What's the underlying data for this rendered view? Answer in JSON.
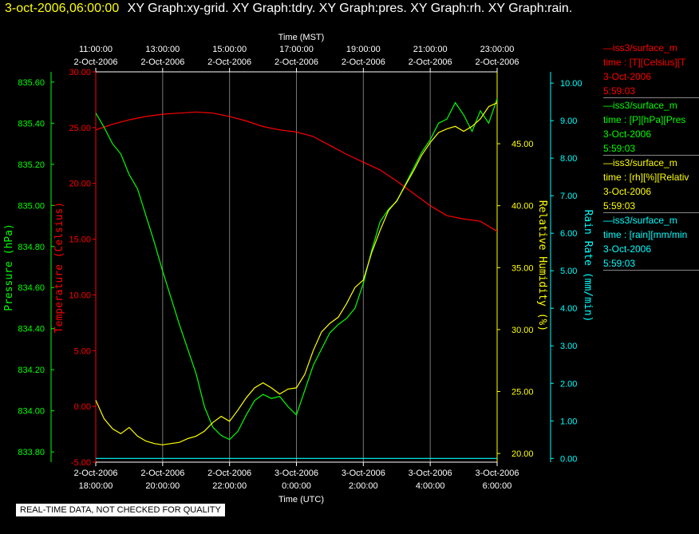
{
  "header": {
    "timestamp": "3-oct-2006,06:00:00",
    "titles": "XY Graph:xy-grid.  XY Graph:tdry.  XY Graph:pres.  XY Graph:rh.  XY Graph:rain."
  },
  "note": "REAL-TIME DATA, NOT CHECKED FOR QUALITY",
  "legend": [
    {
      "name": "—iss3/surface_m",
      "line2": "time : [T][Celsius][T",
      "line3": "3-Oct-2006",
      "line4": "5:59:03",
      "color": "#ff0000"
    },
    {
      "name": "—iss3/surface_m",
      "line2": "time : [P][hPa][Pres",
      "line3": "3-Oct-2006",
      "line4": "5:59:03",
      "color": "#00ff00"
    },
    {
      "name": "—iss3/surface_m",
      "line2": "time : [rh][%][Relativ",
      "line3": "3-Oct-2006",
      "line4": "5:59:03",
      "color": "#ffff00"
    },
    {
      "name": "—iss3/surface_m",
      "line2": "time : [rain][mm/min",
      "line3": "3-Oct-2006",
      "line4": "5:59:03",
      "color": "#00ffff"
    }
  ],
  "chart_data": {
    "type": "line",
    "top_axis": {
      "label": "Time (MST)",
      "ticks": [
        [
          "11:00:00",
          "2-Oct-2006"
        ],
        [
          "13:00:00",
          "2-Oct-2006"
        ],
        [
          "15:00:00",
          "2-Oct-2006"
        ],
        [
          "17:00:00",
          "2-Oct-2006"
        ],
        [
          "19:00:00",
          "2-Oct-2006"
        ],
        [
          "21:00:00",
          "2-Oct-2006"
        ],
        [
          "23:00:00",
          "2-Oct-2006"
        ]
      ]
    },
    "bottom_axis": {
      "label": "Time (UTC)",
      "ticks": [
        [
          "2-Oct-2006",
          "18:00:00"
        ],
        [
          "2-Oct-2006",
          "20:00:00"
        ],
        [
          "2-Oct-2006",
          "22:00:00"
        ],
        [
          "3-Oct-2006",
          "0:00:00"
        ],
        [
          "3-Oct-2006",
          "2:00:00"
        ],
        [
          "3-Oct-2006",
          "4:00:00"
        ],
        [
          "3-Oct-2006",
          "6:00:00"
        ]
      ]
    },
    "x_range_hours_utc": [
      18,
      30
    ],
    "axes": {
      "pressure": {
        "label": "Pressure (hPa)",
        "color": "#00ff00",
        "range": [
          833.75,
          835.65
        ],
        "ticks": [
          "835.60",
          "835.40",
          "835.20",
          "835.00",
          "834.80",
          "834.60",
          "834.40",
          "834.20",
          "834.00",
          "833.80"
        ]
      },
      "temperature": {
        "label": "Temperature (Celsius)",
        "color": "#ff0000",
        "range": [
          -5,
          30
        ],
        "ticks": [
          "30.00",
          "25.00",
          "20.00",
          "15.00",
          "10.00",
          "5.00",
          "0.00",
          "-5.00"
        ]
      },
      "humidity": {
        "label": "Relative Humidity (%)",
        "color": "#ffff00",
        "range": [
          19.3,
          50.8
        ],
        "ticks": [
          "45.00",
          "40.00",
          "35.00",
          "30.00",
          "25.00",
          "20.00"
        ]
      },
      "rain": {
        "label": "Rain Rate (mm/min)",
        "color": "#00ffff",
        "range": [
          -0.1,
          10.3
        ],
        "ticks": [
          "10.00",
          "9.00",
          "8.00",
          "7.00",
          "6.00",
          "5.00",
          "4.00",
          "3.00",
          "2.00",
          "1.00",
          "0.00"
        ]
      }
    },
    "series": [
      {
        "name": "Temperature",
        "axis": "temperature",
        "color": "#ff0000",
        "x": [
          18.0,
          18.5,
          19.0,
          19.5,
          20.0,
          20.5,
          21.0,
          21.5,
          22.0,
          22.5,
          23.0,
          23.5,
          24.0,
          24.5,
          25.0,
          25.5,
          26.0,
          26.5,
          27.0,
          27.5,
          28.0,
          28.5,
          29.0,
          29.5,
          30.0
        ],
        "y": [
          24.8,
          25.3,
          25.7,
          26.0,
          26.2,
          26.3,
          26.4,
          26.3,
          26.0,
          25.6,
          25.1,
          24.8,
          24.6,
          24.2,
          23.4,
          22.6,
          21.9,
          21.2,
          20.2,
          19.1,
          18.0,
          17.1,
          16.8,
          16.6,
          15.7
        ]
      },
      {
        "name": "Pressure",
        "axis": "pressure",
        "color": "#00ff00",
        "x": [
          18.0,
          18.25,
          18.5,
          18.75,
          19.0,
          19.25,
          19.5,
          19.75,
          20.0,
          20.25,
          20.5,
          20.75,
          21.0,
          21.25,
          21.5,
          21.75,
          22.0,
          22.25,
          22.5,
          22.75,
          23.0,
          23.25,
          23.5,
          23.75,
          24.0,
          24.25,
          24.5,
          24.75,
          25.0,
          25.25,
          25.5,
          25.75,
          26.0,
          26.25,
          26.5,
          26.75,
          27.0,
          27.25,
          27.5,
          27.75,
          28.0,
          28.25,
          28.5,
          28.75,
          29.0,
          29.25,
          29.5,
          29.75,
          30.0
        ],
        "y": [
          835.45,
          835.38,
          835.3,
          835.25,
          835.15,
          835.08,
          834.95,
          834.82,
          834.68,
          834.55,
          834.42,
          834.3,
          834.18,
          834.02,
          833.92,
          833.88,
          833.86,
          833.9,
          833.98,
          834.05,
          834.08,
          834.06,
          834.07,
          834.02,
          833.98,
          834.1,
          834.22,
          834.3,
          834.38,
          834.42,
          834.45,
          834.5,
          834.62,
          834.78,
          834.92,
          834.98,
          835.02,
          835.1,
          835.18,
          835.26,
          835.32,
          835.4,
          835.42,
          835.5,
          835.44,
          835.36,
          835.46,
          835.4,
          835.52
        ]
      },
      {
        "name": "Relative Humidity",
        "axis": "humidity",
        "color": "#ffff00",
        "x": [
          18.0,
          18.25,
          18.5,
          18.75,
          19.0,
          19.25,
          19.5,
          19.75,
          20.0,
          20.25,
          20.5,
          20.75,
          21.0,
          21.25,
          21.5,
          21.75,
          22.0,
          22.25,
          22.5,
          22.75,
          23.0,
          23.25,
          23.5,
          23.75,
          24.0,
          24.25,
          24.5,
          24.75,
          25.0,
          25.25,
          25.5,
          25.75,
          26.0,
          26.25,
          26.5,
          26.75,
          27.0,
          27.25,
          27.5,
          27.75,
          28.0,
          28.25,
          28.5,
          28.75,
          29.0,
          29.25,
          29.5,
          29.75,
          30.0
        ],
        "y": [
          24.3,
          22.8,
          22.0,
          21.6,
          22.1,
          21.4,
          21.0,
          20.8,
          20.7,
          20.8,
          20.9,
          21.2,
          21.4,
          21.8,
          22.5,
          23.0,
          22.6,
          23.5,
          24.5,
          25.3,
          25.7,
          25.3,
          24.8,
          25.2,
          25.3,
          26.4,
          28.3,
          29.8,
          30.5,
          31.0,
          32.1,
          33.4,
          34.0,
          36.2,
          38.0,
          39.6,
          40.4,
          41.6,
          42.8,
          44.1,
          45.1,
          45.9,
          46.2,
          46.4,
          46.0,
          46.4,
          47.0,
          48.0,
          48.3
        ]
      },
      {
        "name": "Rain Rate",
        "axis": "rain",
        "color": "#00ffff",
        "x": [
          18.0,
          30.0
        ],
        "y": [
          0.0,
          0.0
        ]
      }
    ]
  }
}
